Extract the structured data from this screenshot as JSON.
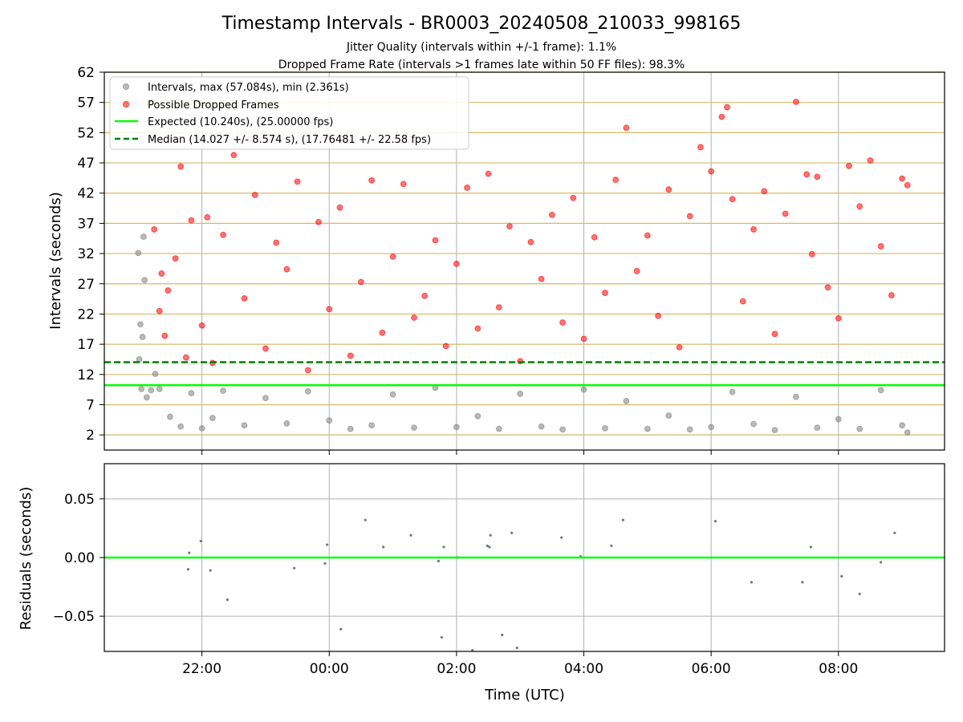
{
  "title": "Timestamp Intervals - BR0003_20240508_210033_998165",
  "subtitle_1": "Jitter Quality (intervals within +/-1 frame): 1.1%",
  "subtitle_2": "Dropped Frame Rate (intervals >1 frames late within 50 FF files): 98.3%",
  "colors": {
    "intervals": "#808080",
    "dropped": "#ff0000",
    "expected": "#00ff00",
    "median": "#008000",
    "hgrid": "#d4b96a",
    "vgrid": "#b0b0b0"
  },
  "chart_data": [
    {
      "type": "scatter",
      "xlabel": "",
      "ylabel": "Intervals (seconds)",
      "xlim": [
        "20:28",
        "09:40"
      ],
      "ylim": [
        -0.5,
        62
      ],
      "yticks": [
        2,
        7,
        12,
        17,
        22,
        27,
        32,
        37,
        42,
        47,
        52,
        57,
        62
      ],
      "xticks": [
        "22:00",
        "00:00",
        "02:00",
        "04:00",
        "06:00",
        "08:00"
      ],
      "grid": true,
      "legend_position": "top-left",
      "legend": [
        "Intervals, max (57.084s), min (2.361s)",
        "Possible Dropped Frames",
        "Expected (10.240s), (25.00000 fps)",
        "Median (14.027 +/- 8.574 s), (17.76481 +/- 22.58 fps)"
      ],
      "series": [
        {
          "name": "Intervals, max (57.084s), min (2.361s)",
          "x": [
            "21:00",
            "21:01",
            "21:02",
            "21:03",
            "21:04",
            "21:05",
            "21:06",
            "21:08",
            "21:12",
            "21:16",
            "21:20",
            "21:30",
            "21:40",
            "21:50",
            "22:00",
            "22:10",
            "22:20",
            "22:40",
            "23:00",
            "23:20",
            "23:40",
            "00:00",
            "00:20",
            "00:40",
            "01:00",
            "01:20",
            "01:40",
            "02:00",
            "02:20",
            "02:40",
            "03:00",
            "03:20",
            "03:40",
            "04:00",
            "04:20",
            "04:40",
            "05:00",
            "05:20",
            "05:40",
            "06:00",
            "06:20",
            "06:40",
            "07:00",
            "07:20",
            "07:40",
            "08:00",
            "08:20",
            "08:40",
            "09:00",
            "09:05"
          ],
          "y": [
            32.1,
            14.5,
            20.3,
            9.6,
            18.2,
            34.8,
            27.6,
            8.2,
            9.4,
            12.1,
            9.6,
            5.0,
            3.4,
            8.9,
            3.1,
            4.8,
            9.3,
            3.6,
            8.1,
            3.9,
            9.2,
            4.4,
            3.0,
            3.6,
            8.7,
            3.2,
            9.8,
            3.3,
            5.1,
            3.0,
            8.8,
            3.4,
            2.9,
            9.5,
            3.1,
            7.6,
            3.0,
            5.2,
            2.9,
            3.3,
            9.1,
            3.8,
            2.8,
            8.3,
            3.2,
            4.6,
            3.0,
            9.4,
            3.6,
            2.4
          ]
        },
        {
          "name": "Possible Dropped Frames",
          "x": [
            "21:15",
            "21:20",
            "21:22",
            "21:25",
            "21:28",
            "21:35",
            "21:40",
            "21:45",
            "21:50",
            "22:00",
            "22:05",
            "22:10",
            "22:20",
            "22:30",
            "22:40",
            "22:50",
            "23:00",
            "23:10",
            "23:20",
            "23:30",
            "23:40",
            "23:50",
            "00:00",
            "00:10",
            "00:20",
            "00:30",
            "00:40",
            "00:50",
            "01:00",
            "01:10",
            "01:20",
            "01:30",
            "01:40",
            "01:50",
            "02:00",
            "02:10",
            "02:20",
            "02:30",
            "02:40",
            "02:50",
            "03:00",
            "03:10",
            "03:20",
            "03:30",
            "03:40",
            "03:50",
            "04:00",
            "04:10",
            "04:20",
            "04:30",
            "04:40",
            "04:50",
            "05:00",
            "05:10",
            "05:20",
            "05:30",
            "05:40",
            "05:50",
            "06:00",
            "06:10",
            "06:15",
            "06:20",
            "06:30",
            "06:40",
            "06:50",
            "07:00",
            "07:10",
            "07:20",
            "07:30",
            "07:35",
            "07:40",
            "07:50",
            "08:00",
            "08:10",
            "08:20",
            "08:30",
            "08:40",
            "08:50",
            "09:00",
            "09:05"
          ],
          "y": [
            36.0,
            22.5,
            28.7,
            18.4,
            25.9,
            31.2,
            46.4,
            14.8,
            37.5,
            20.1,
            38.0,
            13.9,
            35.1,
            48.3,
            24.6,
            41.7,
            16.3,
            33.8,
            29.4,
            43.9,
            12.7,
            37.2,
            22.8,
            39.6,
            15.1,
            27.3,
            44.1,
            18.9,
            31.5,
            43.5,
            21.4,
            25.0,
            34.2,
            16.7,
            30.3,
            42.9,
            19.6,
            45.2,
            23.1,
            36.5,
            14.2,
            33.9,
            27.8,
            38.4,
            20.6,
            41.2,
            17.9,
            34.7,
            25.5,
            44.2,
            52.8,
            29.1,
            35.0,
            21.7,
            42.6,
            16.5,
            38.2,
            49.6,
            45.6,
            54.6,
            56.2,
            41.0,
            24.1,
            36.0,
            42.3,
            18.7,
            38.6,
            57.1,
            45.1,
            31.9,
            44.7,
            26.4,
            21.3,
            46.5,
            39.8,
            47.4,
            33.2,
            25.1,
            44.4,
            43.3
          ]
        },
        {
          "name": "Expected (10.240s), (25.00000 fps)",
          "value": 10.24
        },
        {
          "name": "Median (14.027 +/- 8.574 s), (17.76481 +/- 22.58 fps)",
          "value": 14.027
        }
      ]
    },
    {
      "type": "scatter",
      "xlabel": "Time (UTC)",
      "ylabel": "Residuals (seconds)",
      "xlim": [
        "20:28",
        "09:40"
      ],
      "ylim": [
        -0.08,
        0.08
      ],
      "yticks": [
        "−0.05",
        "0.00",
        "0.05"
      ],
      "ytick_values": [
        -0.05,
        0,
        0.05
      ],
      "xticks": [
        "22:00",
        "00:00",
        "02:00",
        "04:00",
        "06:00",
        "08:00"
      ],
      "grid": true,
      "zero_line_color": "#00ff00",
      "series": [
        {
          "x": [
            "21:47",
            "21:48",
            "21:59",
            "22:08",
            "22:24",
            "23:27",
            "23:56",
            "23:58",
            "00:11",
            "00:34",
            "00:51",
            "01:17",
            "01:43",
            "01:46",
            "01:48",
            "02:01",
            "02:15",
            "02:29",
            "02:31",
            "02:32",
            "02:43",
            "02:52",
            "02:57",
            "03:39",
            "03:57",
            "04:26",
            "04:37",
            "06:04",
            "06:38",
            "07:26",
            "07:34",
            "08:03",
            "08:20",
            "08:40",
            "08:53"
          ],
          "y": [
            -0.01,
            0.004,
            0.014,
            -0.011,
            -0.036,
            -0.009,
            -0.005,
            0.011,
            -0.061,
            0.032,
            0.009,
            0.019,
            -0.003,
            -0.068,
            0.009,
            0.0,
            -0.079,
            0.01,
            0.009,
            0.019,
            -0.066,
            0.021,
            -0.077,
            0.017,
            0.001,
            0.01,
            0.032,
            0.031,
            -0.021,
            -0.021,
            0.009,
            -0.016,
            -0.031,
            -0.004,
            0.021
          ]
        }
      ]
    }
  ]
}
